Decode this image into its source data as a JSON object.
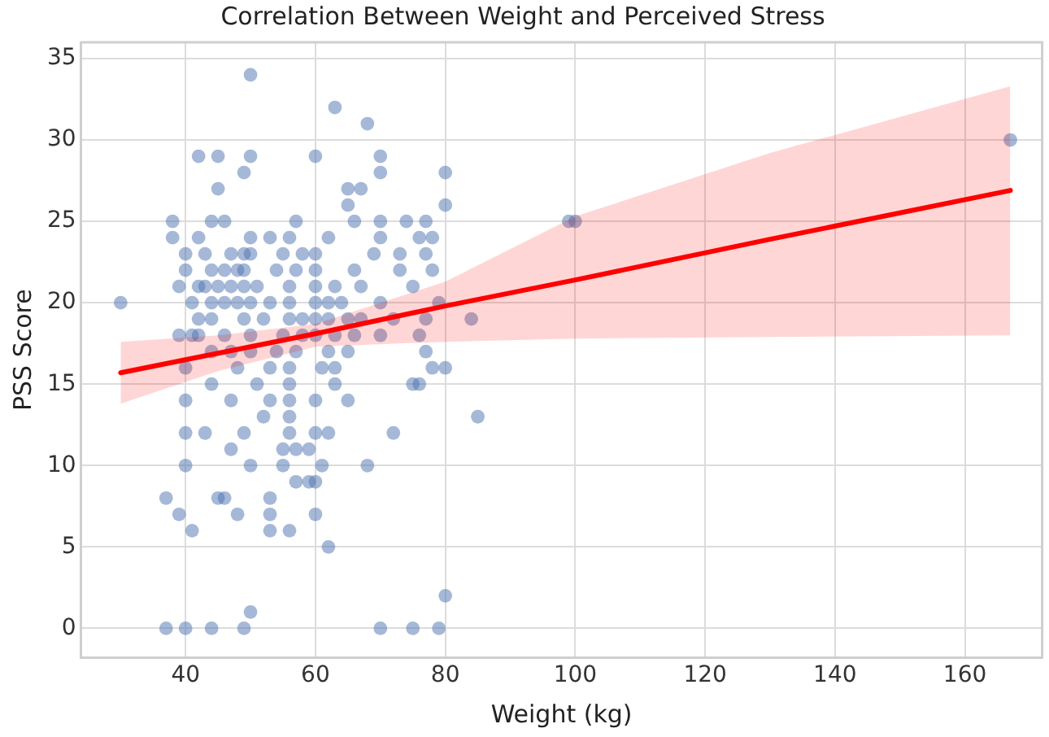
{
  "chart_data": {
    "type": "scatter",
    "title": "Correlation Between Weight and Perceived Stress",
    "xlabel": "Weight (kg)",
    "ylabel": "PSS Score",
    "xlim": [
      23.9,
      171.9
    ],
    "xticks": [
      40,
      60,
      80,
      100,
      120,
      140,
      160
    ],
    "ylim": [
      -1.8,
      36
    ],
    "yticks": [
      0,
      5,
      10,
      15,
      20,
      25,
      30,
      35
    ],
    "grid": true,
    "legend": false,
    "marker": "circle",
    "series": [
      {
        "color": "#4c72b0",
        "x": [
          50,
          63,
          68,
          42,
          45,
          50,
          60,
          70,
          49,
          70,
          80,
          45,
          65,
          67,
          65,
          80,
          38,
          44,
          46,
          57,
          66,
          70,
          74,
          77,
          99,
          100,
          38,
          42,
          50,
          53,
          56,
          62,
          70,
          76,
          78,
          40,
          43,
          47,
          49,
          50,
          55,
          58,
          60,
          69,
          73,
          77,
          40,
          44,
          46,
          48,
          49,
          54,
          57,
          60,
          66,
          73,
          78,
          39,
          42,
          43,
          45,
          47,
          49,
          51,
          56,
          60,
          63,
          67,
          75,
          30,
          41,
          44,
          46,
          48,
          50,
          53,
          56,
          60,
          62,
          64,
          70,
          79,
          42,
          44,
          49,
          52,
          56,
          58,
          60,
          62,
          65,
          67,
          72,
          77,
          84,
          39,
          41,
          42,
          46,
          50,
          55,
          58,
          60,
          63,
          66,
          70,
          76,
          44,
          47,
          50,
          54,
          57,
          62,
          65,
          77,
          40,
          48,
          53,
          56,
          61,
          63,
          78,
          80,
          44,
          51,
          56,
          63,
          75,
          76,
          40,
          47,
          53,
          56,
          60,
          65,
          52,
          56,
          85,
          40,
          43,
          49,
          56,
          60,
          62,
          72,
          47,
          55,
          57,
          59,
          40,
          50,
          55,
          61,
          68,
          57,
          59,
          60,
          37,
          45,
          46,
          53,
          39,
          48,
          53,
          60,
          41,
          53,
          56,
          62,
          80,
          50,
          37,
          40,
          44,
          49,
          70,
          75,
          79,
          167
        ],
        "values": [
          34,
          32,
          31,
          29,
          29,
          29,
          29,
          29,
          28,
          28,
          28,
          27,
          27,
          27,
          26,
          26,
          25,
          25,
          25,
          25,
          25,
          25,
          25,
          25,
          25,
          25,
          24,
          24,
          24,
          24,
          24,
          24,
          24,
          24,
          24,
          23,
          23,
          23,
          23,
          23,
          23,
          23,
          23,
          23,
          23,
          23,
          22,
          22,
          22,
          22,
          22,
          22,
          22,
          22,
          22,
          22,
          22,
          21,
          21,
          21,
          21,
          21,
          21,
          21,
          21,
          21,
          21,
          21,
          21,
          20,
          20,
          20,
          20,
          20,
          20,
          20,
          20,
          20,
          20,
          20,
          20,
          20,
          19,
          19,
          19,
          19,
          19,
          19,
          19,
          19,
          19,
          19,
          19,
          19,
          19,
          18,
          18,
          18,
          18,
          18,
          18,
          18,
          18,
          18,
          18,
          18,
          18,
          17,
          17,
          17,
          17,
          17,
          17,
          17,
          17,
          16,
          16,
          16,
          16,
          16,
          16,
          16,
          16,
          15,
          15,
          15,
          15,
          15,
          15,
          14,
          14,
          14,
          14,
          14,
          14,
          13,
          13,
          13,
          12,
          12,
          12,
          12,
          12,
          12,
          12,
          11,
          11,
          11,
          11,
          10,
          10,
          10,
          10,
          10,
          9,
          9,
          9,
          8,
          8,
          8,
          8,
          7,
          7,
          7,
          7,
          6,
          6,
          6,
          5,
          2,
          1,
          0,
          0,
          0,
          0,
          0,
          0,
          0,
          30
        ]
      },
      {
        "type": "line",
        "marker": "none",
        "color": "#ff0000",
        "x": [
          30,
          45,
          60,
          80,
          100,
          130,
          167
        ],
        "values": [
          15.7,
          16.9,
          18.1,
          19.8,
          21.4,
          23.9,
          26.9
        ],
        "lower": [
          13.8,
          15.8,
          17.3,
          17.6,
          17.8,
          17.9,
          18.0
        ],
        "upper": [
          17.6,
          18.0,
          18.7,
          21.3,
          25.3,
          29.2,
          33.3
        ]
      }
    ]
  }
}
